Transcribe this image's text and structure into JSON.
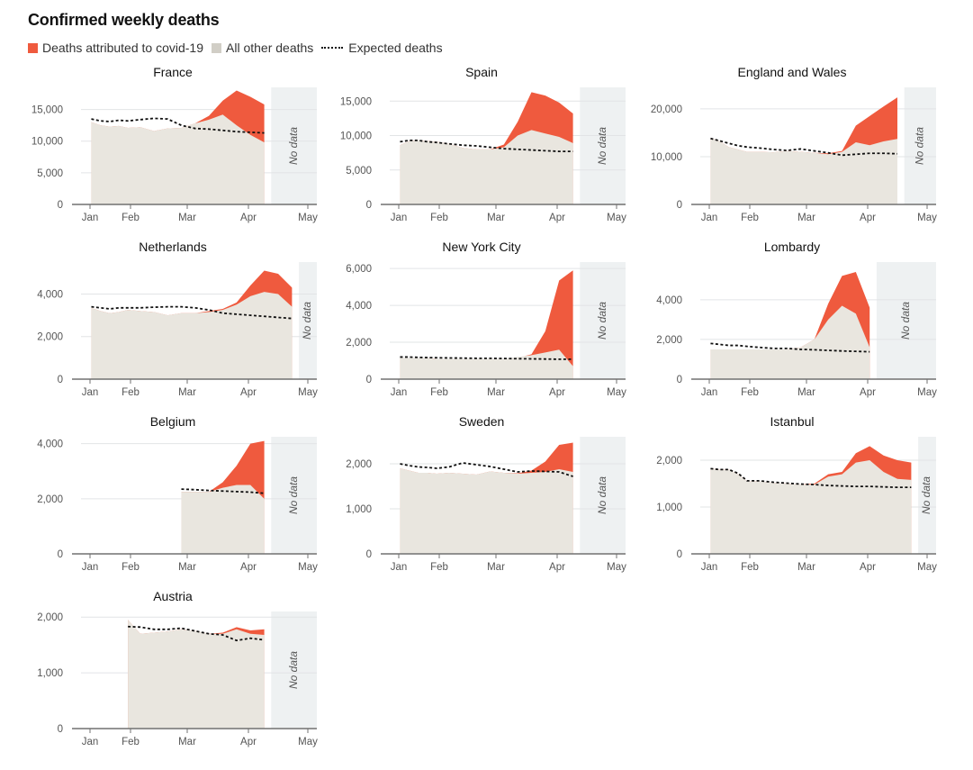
{
  "title": "Confirmed weekly deaths",
  "legend": {
    "covid": {
      "label": "Deaths attributed to covid-19",
      "color": "#ef5a3e"
    },
    "other": {
      "label": "All other deaths",
      "color": "#d1cec6"
    },
    "expected": {
      "label": "Expected deaths"
    }
  },
  "colors": {
    "covid": "#ef5a3e",
    "other_area": "#e9e6df",
    "no_data_band": "#eef1f2",
    "gridline": "#e2e4e6",
    "axis": "#707070",
    "tick_text": "#555555"
  },
  "no_data_label": "No data",
  "chart_data": [
    {
      "type": "area",
      "title": "France",
      "x_ticks": [
        "Jan",
        "Feb",
        "Mar",
        "Apr",
        "May"
      ],
      "y_ticks": [
        0,
        5000,
        10000,
        15000
      ],
      "ylim": [
        0,
        18500
      ],
      "no_data_from_week": 15.5,
      "weeks": [
        1,
        2,
        3,
        4,
        5,
        6,
        7,
        8,
        9,
        10,
        11,
        12,
        13,
        14,
        15
      ],
      "all_other_deaths": [
        13000,
        12500,
        12300,
        12400,
        12100,
        12200,
        11600,
        12000,
        12100,
        12800,
        13400,
        14200,
        12500,
        11000,
        9800
      ],
      "covid_top": [
        13000,
        12500,
        12300,
        12400,
        12100,
        12200,
        11600,
        12000,
        12100,
        12800,
        14000,
        16400,
        18000,
        17000,
        15800
      ],
      "expected_deaths": [
        13500,
        13200,
        13100,
        13300,
        13200,
        13400,
        13600,
        13500,
        12500,
        12000,
        11900,
        11700,
        11500,
        11400,
        11300
      ]
    },
    {
      "type": "area",
      "title": "Spain",
      "x_ticks": [
        "Jan",
        "Feb",
        "Mar",
        "Apr",
        "May"
      ],
      "y_ticks": [
        0,
        5000,
        10000,
        15000
      ],
      "ylim": [
        0,
        17000
      ],
      "no_data_from_week": 15.5,
      "weeks": [
        1,
        2,
        3,
        4,
        5,
        6,
        7,
        8,
        9,
        10,
        11,
        12,
        13,
        14,
        15
      ],
      "all_other_deaths": [
        8600,
        9200,
        9300,
        9200,
        9100,
        8800,
        8200,
        8000,
        8000,
        8300,
        10000,
        10800,
        10300,
        9800,
        8900
      ],
      "covid_top": [
        8600,
        9200,
        9300,
        9200,
        9100,
        8800,
        8200,
        8000,
        8000,
        8700,
        12000,
        16300,
        15800,
        14800,
        13200
      ],
      "expected_deaths": [
        9100,
        9300,
        9300,
        9100,
        9000,
        8800,
        8600,
        8500,
        8300,
        8100,
        8000,
        7900,
        7800,
        7700,
        7700
      ]
    },
    {
      "type": "area",
      "title": "England and Wales",
      "x_ticks": [
        "Jan",
        "Feb",
        "Mar",
        "Apr",
        "May"
      ],
      "y_ticks": [
        0,
        10000,
        20000
      ],
      "ylim": [
        0,
        24500
      ],
      "no_data_from_week": 16.5,
      "weeks": [
        1,
        2,
        3,
        4,
        5,
        6,
        7,
        8,
        9,
        10,
        11,
        12,
        13,
        14,
        15,
        16
      ],
      "all_other_deaths": [
        13900,
        13200,
        12000,
        11500,
        11000,
        11000,
        10900,
        11200,
        11000,
        10800,
        10500,
        11000,
        13000,
        12400,
        13200,
        13700
      ],
      "covid_top": [
        13900,
        13200,
        12000,
        11500,
        11000,
        11000,
        10900,
        11200,
        11000,
        10800,
        10700,
        11200,
        16500,
        18500,
        20500,
        22400
      ],
      "expected_deaths": [
        13800,
        13300,
        12800,
        12300,
        12000,
        11800,
        11500,
        11300,
        11600,
        11200,
        10800,
        10300,
        10500,
        10700,
        10700,
        10600
      ]
    },
    {
      "type": "area",
      "title": "Netherlands",
      "x_ticks": [
        "Jan",
        "Feb",
        "Mar",
        "Apr",
        "May"
      ],
      "y_ticks": [
        0,
        2000,
        4000
      ],
      "ylim": [
        0,
        5500
      ],
      "no_data_from_week": 17.5,
      "weeks": [
        1,
        2,
        3,
        4,
        5,
        6,
        7,
        8,
        9,
        10,
        11,
        12,
        13,
        14,
        15,
        16,
        17
      ],
      "all_other_deaths": [
        3350,
        3200,
        3100,
        3150,
        3250,
        3200,
        3150,
        3000,
        3100,
        3100,
        3150,
        3250,
        3500,
        3900,
        4100,
        4000,
        3400
      ],
      "covid_top": [
        3350,
        3200,
        3100,
        3150,
        3250,
        3200,
        3150,
        3000,
        3100,
        3100,
        3200,
        3300,
        3600,
        4400,
        5100,
        4950,
        4300
      ],
      "expected_deaths": [
        3400,
        3350,
        3300,
        3350,
        3350,
        3350,
        3380,
        3400,
        3400,
        3350,
        3250,
        3100,
        3050,
        3000,
        2950,
        2900,
        2850
      ]
    },
    {
      "type": "area",
      "title": "New York City",
      "x_ticks": [
        "Jan",
        "Feb",
        "Mar",
        "Apr",
        "May"
      ],
      "y_ticks": [
        0,
        2000,
        4000,
        6000
      ],
      "ylim": [
        0,
        6350
      ],
      "no_data_from_week": 15.5,
      "weeks": [
        1,
        2,
        3,
        4,
        5,
        6,
        7,
        8,
        9,
        10,
        11,
        12,
        13,
        14,
        15
      ],
      "all_other_deaths": [
        1150,
        1150,
        1150,
        1150,
        1100,
        1100,
        1100,
        1100,
        1100,
        1100,
        1200,
        1300,
        1450,
        1600,
        700
      ],
      "covid_top": [
        1150,
        1150,
        1150,
        1150,
        1100,
        1100,
        1100,
        1100,
        1100,
        1100,
        1150,
        1350,
        2600,
        5350,
        5900
      ],
      "expected_deaths": [
        1200,
        1200,
        1180,
        1170,
        1160,
        1150,
        1140,
        1130,
        1130,
        1120,
        1110,
        1100,
        1090,
        1080,
        1080
      ]
    },
    {
      "type": "area",
      "title": "Lombardy",
      "x_ticks": [
        "Jan",
        "Feb",
        "Mar",
        "Apr",
        "May"
      ],
      "y_ticks": [
        0,
        2000,
        4000
      ],
      "ylim": [
        0,
        5900
      ],
      "no_data_from_week": 14.5,
      "weeks": [
        1,
        2,
        3,
        4,
        5,
        6,
        7,
        8,
        9,
        10,
        11,
        12,
        13,
        14
      ],
      "all_other_deaths": [
        1500,
        1500,
        1500,
        1500,
        1500,
        1500,
        1500,
        1500,
        1600,
        2000,
        3000,
        3700,
        3300,
        1600
      ],
      "covid_top": [
        1500,
        1500,
        1500,
        1500,
        1500,
        1500,
        1500,
        1500,
        1600,
        2000,
        3800,
        5200,
        5400,
        3600
      ],
      "expected_deaths": [
        1800,
        1750,
        1700,
        1700,
        1650,
        1600,
        1550,
        1550,
        1500,
        1480,
        1450,
        1420,
        1400,
        1380
      ]
    },
    {
      "type": "area",
      "title": "Belgium",
      "x_ticks": [
        "Jan",
        "Feb",
        "Mar",
        "Apr",
        "May"
      ],
      "y_ticks": [
        0,
        2000,
        4000
      ],
      "ylim": [
        0,
        4250
      ],
      "no_data_from_week": 15.5,
      "data_starts_week": 9,
      "weeks": [
        9,
        10,
        11,
        12,
        13,
        14,
        15
      ],
      "all_other_deaths": [
        2250,
        2250,
        2250,
        2400,
        2500,
        2500,
        2000
      ],
      "covid_top": [
        2250,
        2250,
        2250,
        2600,
        3200,
        4000,
        4100
      ],
      "expected_deaths": [
        2350,
        2330,
        2300,
        2280,
        2260,
        2240,
        2200
      ]
    },
    {
      "type": "area",
      "title": "Sweden",
      "x_ticks": [
        "Jan",
        "Feb",
        "Mar",
        "Apr",
        "May"
      ],
      "y_ticks": [
        0,
        1000,
        2000
      ],
      "ylim": [
        0,
        2600
      ],
      "no_data_from_week": 15.5,
      "weeks": [
        1,
        2,
        3,
        4,
        5,
        6,
        7,
        8,
        9,
        10,
        11,
        12,
        13,
        14,
        15
      ],
      "all_other_deaths": [
        1900,
        1850,
        1800,
        1800,
        1780,
        1800,
        1780,
        1760,
        1830,
        1800,
        1780,
        1800,
        1820,
        1880,
        1820
      ],
      "covid_top": [
        1900,
        1850,
        1800,
        1800,
        1780,
        1800,
        1780,
        1760,
        1830,
        1800,
        1790,
        1850,
        2050,
        2420,
        2470
      ],
      "expected_deaths": [
        2000,
        1960,
        1930,
        1920,
        1900,
        1930,
        2020,
        1980,
        1940,
        1880,
        1820,
        1840,
        1830,
        1820,
        1720
      ]
    },
    {
      "type": "area",
      "title": "Istanbul",
      "x_ticks": [
        "Jan",
        "Feb",
        "Mar",
        "Apr",
        "May"
      ],
      "y_ticks": [
        0,
        1000,
        2000
      ],
      "ylim": [
        0,
        2500
      ],
      "no_data_from_week": 17.5,
      "weeks": [
        1,
        2,
        3,
        4,
        5,
        6,
        7,
        8,
        9,
        10,
        11,
        12,
        13,
        14,
        15,
        16,
        17
      ],
      "all_other_deaths": [
        1820,
        1800,
        1800,
        1700,
        1550,
        1550,
        1520,
        1500,
        1480,
        1480,
        1650,
        1700,
        1950,
        2000,
        1750,
        1600,
        1580
      ],
      "covid_top": [
        1820,
        1800,
        1800,
        1700,
        1550,
        1550,
        1520,
        1500,
        1480,
        1500,
        1700,
        1750,
        2150,
        2300,
        2100,
        2000,
        1950
      ],
      "expected_deaths": [
        1820,
        1800,
        1800,
        1720,
        1560,
        1560,
        1530,
        1510,
        1490,
        1480,
        1460,
        1450,
        1440,
        1440,
        1430,
        1420,
        1420
      ]
    },
    {
      "type": "area",
      "title": "Austria",
      "x_ticks": [
        "Jan",
        "Feb",
        "Mar",
        "Apr",
        "May"
      ],
      "y_ticks": [
        0,
        1000,
        2000
      ],
      "ylim": [
        0,
        2100
      ],
      "no_data_from_week": 15.5,
      "data_starts_week": 5,
      "weeks": [
        5,
        6,
        7,
        8,
        9,
        10,
        11,
        12,
        13,
        14,
        15
      ],
      "all_other_deaths": [
        1950,
        1700,
        1720,
        1740,
        1780,
        1750,
        1700,
        1700,
        1780,
        1700,
        1680
      ],
      "covid_top": [
        1950,
        1700,
        1720,
        1740,
        1780,
        1750,
        1700,
        1720,
        1820,
        1760,
        1780
      ],
      "expected_deaths": [
        1830,
        1820,
        1780,
        1780,
        1800,
        1750,
        1700,
        1680,
        1580,
        1620,
        1590
      ]
    }
  ]
}
